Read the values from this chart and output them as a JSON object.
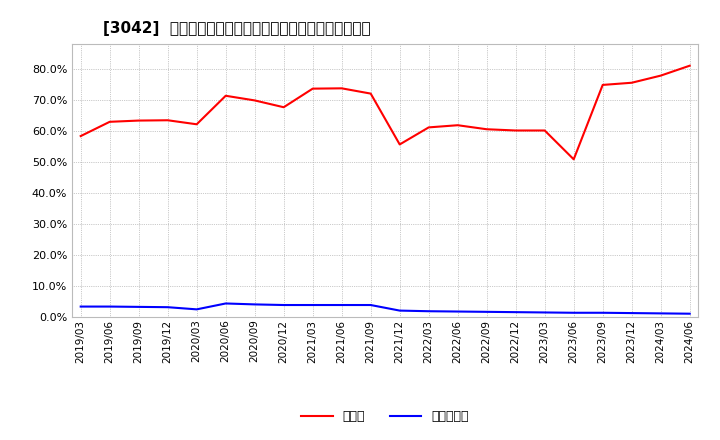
{
  "title": "[3042]  現預金、有利子負債の総資産に対する比率の推移",
  "legend_labels": [
    "現預金",
    "有利子負債"
  ],
  "line_colors": [
    "#ff0000",
    "#0000ff"
  ],
  "ylim": [
    0.0,
    0.88
  ],
  "yticks": [
    0.0,
    0.1,
    0.2,
    0.3,
    0.4,
    0.5,
    0.6,
    0.7,
    0.8
  ],
  "dates": [
    "2019/03",
    "2019/06",
    "2019/09",
    "2019/12",
    "2020/03",
    "2020/06",
    "2020/09",
    "2020/12",
    "2021/03",
    "2021/06",
    "2021/09",
    "2021/12",
    "2022/03",
    "2022/06",
    "2022/09",
    "2022/12",
    "2023/03",
    "2023/06",
    "2023/09",
    "2023/12",
    "2024/03",
    "2024/06"
  ],
  "cash": [
    0.583,
    0.629,
    0.633,
    0.634,
    0.621,
    0.713,
    0.698,
    0.676,
    0.736,
    0.737,
    0.72,
    0.556,
    0.611,
    0.618,
    0.605,
    0.601,
    0.601,
    0.508,
    0.748,
    0.755,
    0.778,
    0.81
  ],
  "debt": [
    0.033,
    0.033,
    0.032,
    0.031,
    0.024,
    0.043,
    0.04,
    0.038,
    0.038,
    0.038,
    0.038,
    0.02,
    0.018,
    0.017,
    0.016,
    0.015,
    0.014,
    0.013,
    0.013,
    0.012,
    0.011,
    0.01
  ],
  "background_color": "#ffffff",
  "grid_color": "#999999",
  "title_fontsize": 11,
  "tick_fontsize": 7.5,
  "ytick_fontsize": 8
}
